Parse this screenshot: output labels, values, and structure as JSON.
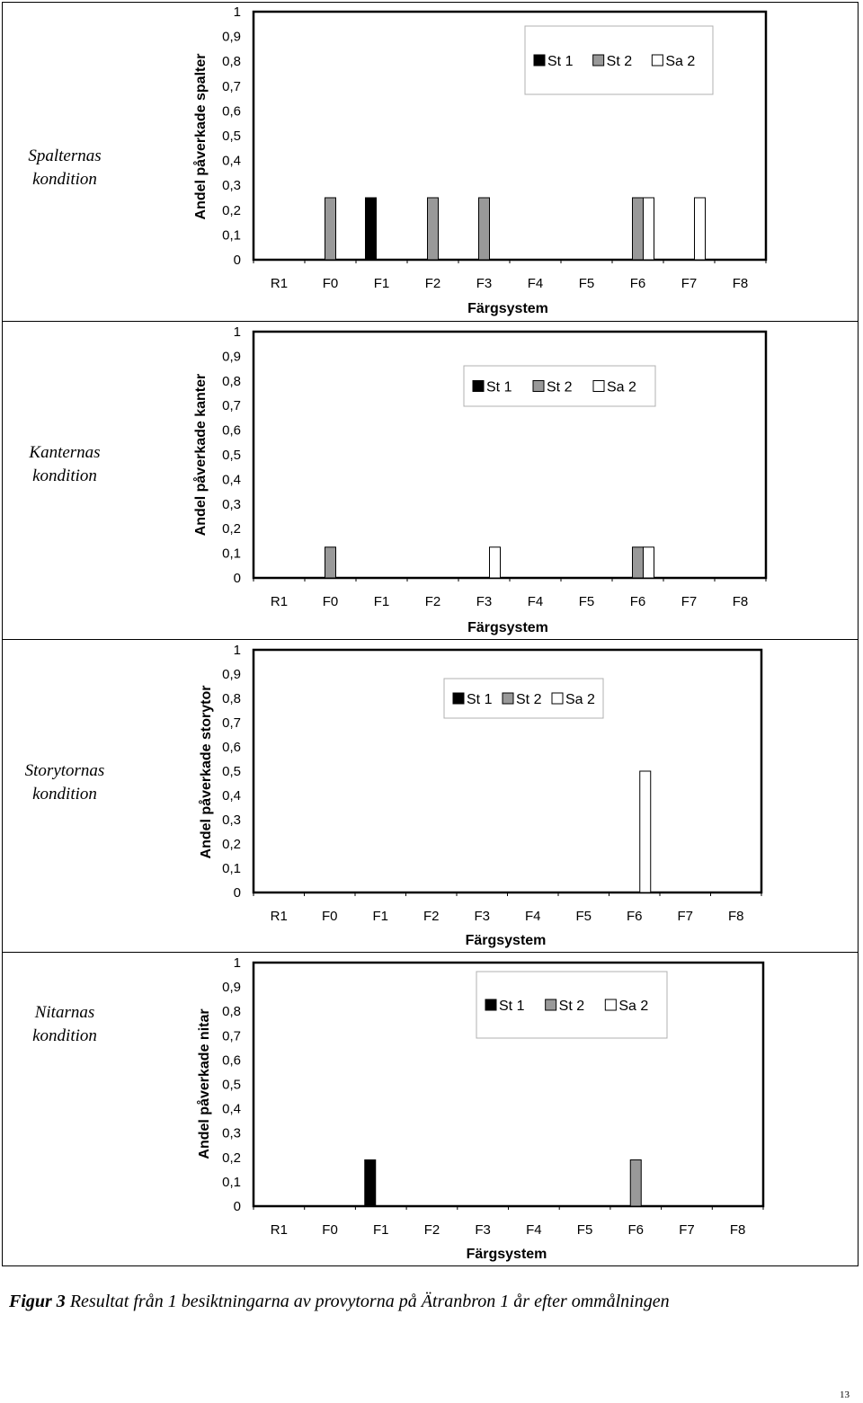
{
  "chart_data": [
    {
      "type": "bar",
      "row_title": [
        "Spalternas",
        "kondition"
      ],
      "ylabel": "Andel påverkade spalter",
      "xlabel": "Färgsystem",
      "categories": [
        "R1",
        "F0",
        "F1",
        "F2",
        "F3",
        "F4",
        "F5",
        "F6",
        "F7",
        "F8"
      ],
      "ylim": [
        0,
        1
      ],
      "yticks": [
        "0",
        "0,1",
        "0,2",
        "0,3",
        "0,4",
        "0,5",
        "0,6",
        "0,7",
        "0,8",
        "0,9",
        "1"
      ],
      "legend_position": "top-right",
      "series": [
        {
          "name": "St 1",
          "color": "#000000",
          "values": [
            0,
            0,
            0.25,
            0,
            0,
            0,
            0,
            0,
            0,
            0
          ]
        },
        {
          "name": "St 2",
          "color": "#999999",
          "values": [
            0,
            0.25,
            0,
            0.25,
            0.25,
            0,
            0,
            0.25,
            0,
            0
          ]
        },
        {
          "name": "Sa 2",
          "color": "#ffffff",
          "values": [
            0,
            0,
            0,
            0,
            0,
            0,
            0,
            0.25,
            0.25,
            0
          ]
        }
      ]
    },
    {
      "type": "bar",
      "row_title": [
        "Kanternas",
        "kondition"
      ],
      "ylabel": "Andel påverkade kanter",
      "xlabel": "Färgsystem",
      "categories": [
        "R1",
        "F0",
        "F1",
        "F2",
        "F3",
        "F4",
        "F5",
        "F6",
        "F7",
        "F8"
      ],
      "ylim": [
        0,
        1
      ],
      "yticks": [
        "0",
        "0,1",
        "0,2",
        "0,3",
        "0,4",
        "0,5",
        "0,6",
        "0,7",
        "0,8",
        "0,9",
        "1"
      ],
      "legend_position": "top-right",
      "series": [
        {
          "name": "St 1",
          "color": "#000000",
          "values": [
            0,
            0,
            0,
            0,
            0,
            0,
            0,
            0,
            0,
            0
          ]
        },
        {
          "name": "St 2",
          "color": "#999999",
          "values": [
            0,
            0.125,
            0,
            0,
            0,
            0,
            0,
            0.125,
            0,
            0
          ]
        },
        {
          "name": "Sa 2",
          "color": "#ffffff",
          "values": [
            0,
            0,
            0,
            0,
            0.125,
            0,
            0,
            0.125,
            0,
            0
          ]
        }
      ]
    },
    {
      "type": "bar",
      "row_title": [
        "Storytornas",
        "kondition"
      ],
      "ylabel": "Andel påverkade storytor",
      "xlabel": "Färgsystem",
      "categories": [
        "R1",
        "F0",
        "F1",
        "F2",
        "F3",
        "F4",
        "F5",
        "F6",
        "F7",
        "F8"
      ],
      "ylim": [
        0,
        1
      ],
      "yticks": [
        "0",
        "0,1",
        "0,2",
        "0,3",
        "0,4",
        "0,5",
        "0,6",
        "0,7",
        "0,8",
        "0,9",
        "1"
      ],
      "legend_position": "top-center",
      "series": [
        {
          "name": "St 1",
          "color": "#000000",
          "values": [
            0,
            0,
            0,
            0,
            0,
            0,
            0,
            0,
            0,
            0
          ]
        },
        {
          "name": "St 2",
          "color": "#999999",
          "values": [
            0,
            0,
            0,
            0,
            0,
            0,
            0,
            0,
            0,
            0
          ]
        },
        {
          "name": "Sa 2",
          "color": "#ffffff",
          "values": [
            0,
            0,
            0,
            0,
            0,
            0,
            0,
            0.5,
            0,
            0
          ]
        }
      ]
    },
    {
      "type": "bar",
      "row_title": [
        "Nitarnas",
        "kondition"
      ],
      "ylabel": "Andel påverkade nitar",
      "xlabel": "Färgsystem",
      "categories": [
        "R1",
        "F0",
        "F1",
        "F2",
        "F3",
        "F4",
        "F5",
        "F6",
        "F7",
        "F8"
      ],
      "ylim": [
        0,
        1
      ],
      "yticks": [
        "0",
        "0,1",
        "0,2",
        "0,3",
        "0,4",
        "0,5",
        "0,6",
        "0,7",
        "0,8",
        "0,9",
        "1"
      ],
      "legend_position": "top-right",
      "series": [
        {
          "name": "St 1",
          "color": "#000000",
          "values": [
            0,
            0,
            0.19,
            0,
            0,
            0,
            0,
            0,
            0,
            0
          ]
        },
        {
          "name": "St 2",
          "color": "#999999",
          "values": [
            0,
            0,
            0,
            0,
            0,
            0,
            0,
            0.19,
            0,
            0
          ]
        },
        {
          "name": "Sa 2",
          "color": "#ffffff",
          "values": [
            0,
            0,
            0,
            0,
            0,
            0,
            0,
            0,
            0,
            0
          ]
        }
      ]
    }
  ],
  "caption": {
    "label": "Figur 3",
    "text": "Resultat från 1 besiktningarna av provytorna på Ätranbron 1 år efter ommålningen"
  },
  "page_number": "13"
}
